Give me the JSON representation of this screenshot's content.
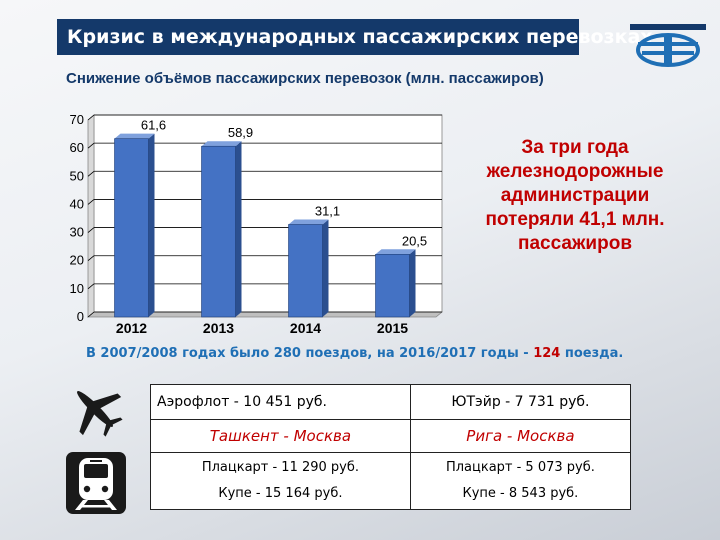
{
  "header": {
    "title": "Кризис в международных пассажирских перевозках",
    "subtitle": "Снижение объёмов пассажирских перевозок (млн. пассажиров)"
  },
  "chart_data": {
    "type": "bar",
    "title": "Снижение объёмов пассажирских перевозок (млн. пассажиров)",
    "categories": [
      "2012",
      "2013",
      "2014",
      "2015"
    ],
    "values": [
      61.6,
      58.9,
      31.1,
      20.5
    ],
    "value_labels": [
      "61,6",
      "58,9",
      "31,1",
      "20,5"
    ],
    "yticks": [
      "0",
      "10",
      "20",
      "30",
      "40",
      "50",
      "60",
      "70"
    ],
    "ylim": [
      0,
      70
    ],
    "xlabel": "",
    "ylabel": "",
    "grid": true,
    "bar_color": "#4472c4"
  },
  "callout": {
    "text": "За три года железнодорожные администрации потеряли 41,1 млн. пассажиров"
  },
  "trains_note": {
    "prefix": "В 2007/2008 годах было 280 поездов, на 2016/2017 годы - ",
    "highlight": "124",
    "suffix": " поезда."
  },
  "prices": {
    "air_left": "Аэрофлот - 10 451 руб.",
    "air_right": "ЮТэйр - 7 731 руб.",
    "route_left": "Ташкент - Москва",
    "route_right": "Рига - Москва",
    "rail_left_1": "Плацкарт - 11 290 руб.",
    "rail_left_2": "Купе - 15 164 руб.",
    "rail_right_1": "Плацкарт - 5 073 руб.",
    "rail_right_2": "Купе - 8 543 руб."
  },
  "icons": {
    "plane": "airplane-icon",
    "train": "train-icon"
  }
}
